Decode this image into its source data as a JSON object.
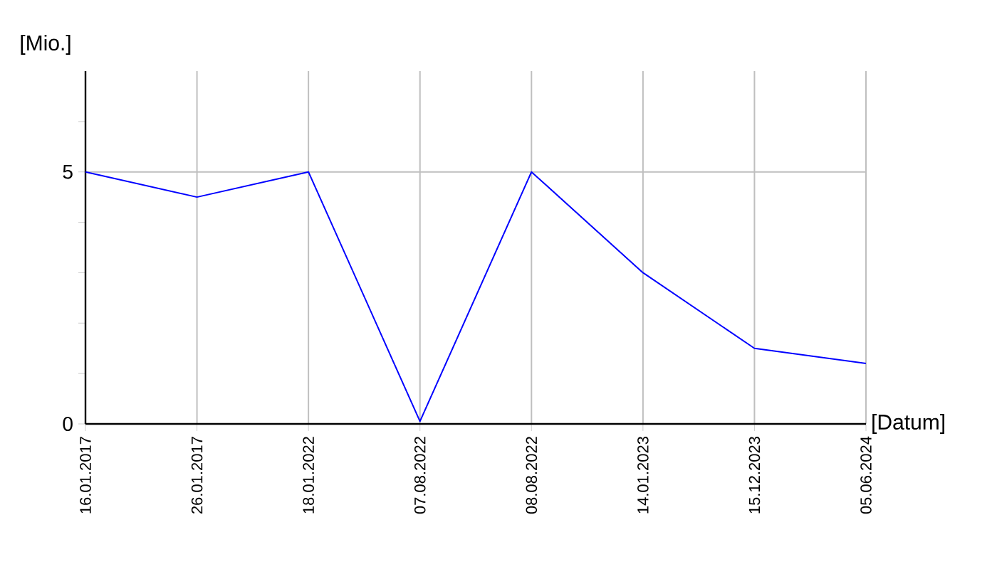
{
  "chart_data": {
    "type": "line",
    "xlabel": "[Datum]",
    "ylabel": "[Mio.]",
    "categories": [
      "16.01.2017",
      "26.01.2017",
      "18.01.2022",
      "07.08.2022",
      "08.08.2022",
      "14.01.2023",
      "15.12.2023",
      "05.06.2024"
    ],
    "series": [
      {
        "color": "#0000ff",
        "values": [
          5,
          4.5,
          5,
          0.05,
          5,
          3.0,
          1.5,
          1.2
        ]
      }
    ],
    "ylim": [
      0,
      7
    ],
    "yticks": [
      0,
      {
        "value": 1,
        "label": null
      },
      {
        "value": 2,
        "label": null
      },
      {
        "value": 3,
        "label": null
      },
      {
        "value": 4,
        "label": null
      },
      5,
      {
        "value": 6,
        "label": null
      }
    ],
    "grid": true,
    "marker": "none",
    "line_style": "solid"
  }
}
